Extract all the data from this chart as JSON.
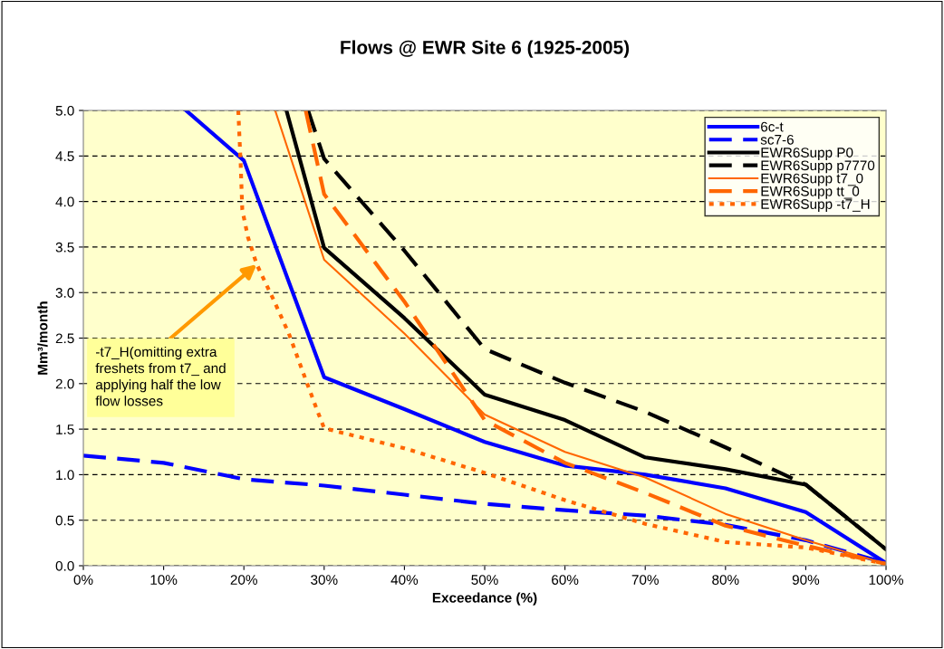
{
  "chart_data": {
    "type": "line",
    "title": "Flows @ EWR Site 6 (1925-2005)",
    "xlabel": "Exceedance (%)",
    "ylabel": "Mm³/month",
    "xlim": [
      0,
      100
    ],
    "xticks": [
      {
        "value": 0,
        "label": "0%"
      },
      {
        "value": 10,
        "label": "10%"
      },
      {
        "value": 20,
        "label": "20%"
      },
      {
        "value": 30,
        "label": "30%"
      },
      {
        "value": 40,
        "label": "40%"
      },
      {
        "value": 50,
        "label": "50%"
      },
      {
        "value": 60,
        "label": "60%"
      },
      {
        "value": 70,
        "label": "70%"
      },
      {
        "value": 80,
        "label": "80%"
      },
      {
        "value": 90,
        "label": "90%"
      },
      {
        "value": 100,
        "label": "100%"
      }
    ],
    "ylim": [
      0,
      5
    ],
    "yticks": [
      {
        "value": 0,
        "label": "0.0"
      },
      {
        "value": 0.5,
        "label": "0.5"
      },
      {
        "value": 1,
        "label": "1.0"
      },
      {
        "value": 1.5,
        "label": "1.5"
      },
      {
        "value": 2,
        "label": "2.0"
      },
      {
        "value": 2.5,
        "label": "2.5"
      },
      {
        "value": 3,
        "label": "3.0"
      },
      {
        "value": 3.5,
        "label": "3.5"
      },
      {
        "value": 4,
        "label": "4.0"
      },
      {
        "value": 4.5,
        "label": "4.5"
      },
      {
        "value": 5,
        "label": "5.0"
      }
    ],
    "grid": "y",
    "legend": "top right",
    "marker": "none",
    "series": [
      {
        "name": "6c-t",
        "color": "#0000ff",
        "line_style": "solid",
        "x": [
          12.8,
          20,
          30,
          40,
          50,
          60,
          70,
          80,
          90,
          100
        ],
        "values": [
          5.0,
          4.45,
          2.07,
          1.72,
          1.36,
          1.1,
          1.0,
          0.85,
          0.59,
          0.03
        ]
      },
      {
        "name": "sc7-6",
        "color": "#0000ff",
        "line_style": "dashed",
        "x": [
          0,
          10,
          20,
          30,
          40,
          50,
          60,
          70,
          80,
          90,
          100
        ],
        "values": [
          1.21,
          1.13,
          0.95,
          0.88,
          0.78,
          0.68,
          0.61,
          0.55,
          0.45,
          0.28,
          0.03
        ]
      },
      {
        "name": "EWR6Supp P0",
        "color": "#000000",
        "line_style": "solid",
        "x": [
          25.3,
          30,
          40,
          50,
          60,
          70,
          80,
          90,
          100
        ],
        "values": [
          5.0,
          3.49,
          2.72,
          1.88,
          1.6,
          1.19,
          1.06,
          0.89,
          0.18
        ]
      },
      {
        "name": "EWR6Supp p7770",
        "color": "#000000",
        "line_style": "dashed",
        "x": [
          28,
          30,
          40,
          50,
          60,
          70,
          80,
          90,
          100
        ],
        "values": [
          5.0,
          4.47,
          3.46,
          2.38,
          2.01,
          1.69,
          1.3,
          0.89,
          0.18
        ]
      },
      {
        "name": "EWR6Supp t7_0",
        "color": "#ff6600",
        "line_style": "solid",
        "x": [
          23.9,
          30,
          40,
          50,
          60,
          70,
          80,
          90,
          100
        ],
        "values": [
          5.0,
          3.36,
          2.55,
          1.66,
          1.25,
          0.97,
          0.57,
          0.28,
          0.02
        ]
      },
      {
        "name": "EWR6Supp tt_0",
        "color": "#ff6600",
        "line_style": "dashed",
        "x": [
          27.7,
          30,
          40,
          50,
          60,
          70,
          80,
          90,
          100
        ],
        "values": [
          5.0,
          4.08,
          2.9,
          1.6,
          1.13,
          0.8,
          0.44,
          0.22,
          0.02
        ]
      },
      {
        "name": "EWR6Supp -t7_H",
        "color": "#ff6600",
        "line_style": "dotted",
        "x": [
          19.3,
          19.6,
          19.8,
          20.5,
          21.6,
          23.7,
          25.6,
          27.8,
          29.2,
          30,
          40,
          50,
          60,
          70,
          80,
          90,
          100
        ],
        "values": [
          5.0,
          4.41,
          3.91,
          3.61,
          3.31,
          2.92,
          2.55,
          2.02,
          1.69,
          1.51,
          1.29,
          1.02,
          0.72,
          0.46,
          0.26,
          0.2,
          0.02
        ]
      }
    ],
    "annotations": [
      {
        "text": "-t7_H(omitting extra\nfreshets from t7_ and\napplying half the low\nflow losses",
        "x": 21.6,
        "y": 3.31
      }
    ]
  }
}
